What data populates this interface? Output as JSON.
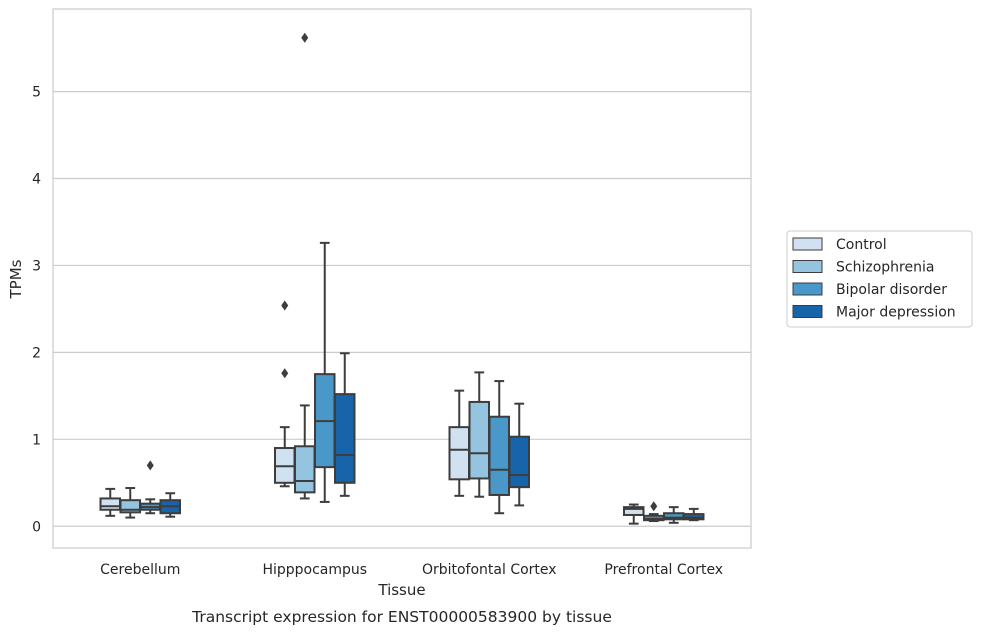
{
  "chart_data": {
    "type": "boxplot",
    "caption": "Transcript expression for ENST00000583900 by tissue",
    "xlabel": "Tissue",
    "ylabel": "TPMs",
    "ylim": [
      -0.25,
      5.95
    ],
    "yticks": [
      0,
      1,
      2,
      3,
      4,
      5
    ],
    "grid": "horizontal",
    "legend_position": "right",
    "categories": [
      "Cerebellum",
      "Hipppocampus",
      "Orbitofontal Cortex",
      "Prefrontal Cortex"
    ],
    "series": [
      {
        "name": "Control",
        "color": "#d0e1f2",
        "boxes": [
          {
            "whislo": 0.12,
            "q1": 0.19,
            "med": 0.23,
            "q3": 0.32,
            "whishi": 0.43,
            "fliers": []
          },
          {
            "whislo": 0.46,
            "q1": 0.5,
            "med": 0.69,
            "q3": 0.9,
            "whishi": 1.14,
            "fliers": [
              1.76,
              2.54
            ]
          },
          {
            "whislo": 0.35,
            "q1": 0.54,
            "med": 0.88,
            "q3": 1.14,
            "whishi": 1.56,
            "fliers": []
          },
          {
            "whislo": 0.03,
            "q1": 0.13,
            "med": 0.2,
            "q3": 0.22,
            "whishi": 0.25,
            "fliers": []
          }
        ]
      },
      {
        "name": "Schizophrenia",
        "color": "#94c4df",
        "boxes": [
          {
            "whislo": 0.1,
            "q1": 0.16,
            "med": 0.19,
            "q3": 0.3,
            "whishi": 0.44,
            "fliers": []
          },
          {
            "whislo": 0.32,
            "q1": 0.39,
            "med": 0.52,
            "q3": 0.92,
            "whishi": 1.39,
            "fliers": [
              5.62
            ]
          },
          {
            "whislo": 0.34,
            "q1": 0.55,
            "med": 0.84,
            "q3": 1.43,
            "whishi": 1.77,
            "fliers": []
          },
          {
            "whislo": 0.06,
            "q1": 0.07,
            "med": 0.09,
            "q3": 0.12,
            "whishi": 0.14,
            "fliers": [
              0.23
            ]
          }
        ]
      },
      {
        "name": "Bipolar disorder",
        "color": "#4a98c9",
        "boxes": [
          {
            "whislo": 0.15,
            "q1": 0.19,
            "med": 0.22,
            "q3": 0.26,
            "whishi": 0.31,
            "fliers": [
              0.7
            ]
          },
          {
            "whislo": 0.28,
            "q1": 0.68,
            "med": 1.21,
            "q3": 1.75,
            "whishi": 3.26,
            "fliers": []
          },
          {
            "whislo": 0.15,
            "q1": 0.36,
            "med": 0.65,
            "q3": 1.26,
            "whishi": 1.67,
            "fliers": []
          },
          {
            "whislo": 0.04,
            "q1": 0.08,
            "med": 0.1,
            "q3": 0.15,
            "whishi": 0.22,
            "fliers": []
          }
        ]
      },
      {
        "name": "Major depression",
        "color": "#1764ab",
        "boxes": [
          {
            "whislo": 0.11,
            "q1": 0.15,
            "med": 0.23,
            "q3": 0.3,
            "whishi": 0.38,
            "fliers": []
          },
          {
            "whislo": 0.35,
            "q1": 0.5,
            "med": 0.82,
            "q3": 1.52,
            "whishi": 1.99,
            "fliers": []
          },
          {
            "whislo": 0.24,
            "q1": 0.45,
            "med": 0.59,
            "q3": 1.03,
            "whishi": 1.41,
            "fliers": []
          },
          {
            "whislo": 0.07,
            "q1": 0.08,
            "med": 0.1,
            "q3": 0.14,
            "whishi": 0.2,
            "fliers": []
          }
        ]
      }
    ]
  }
}
